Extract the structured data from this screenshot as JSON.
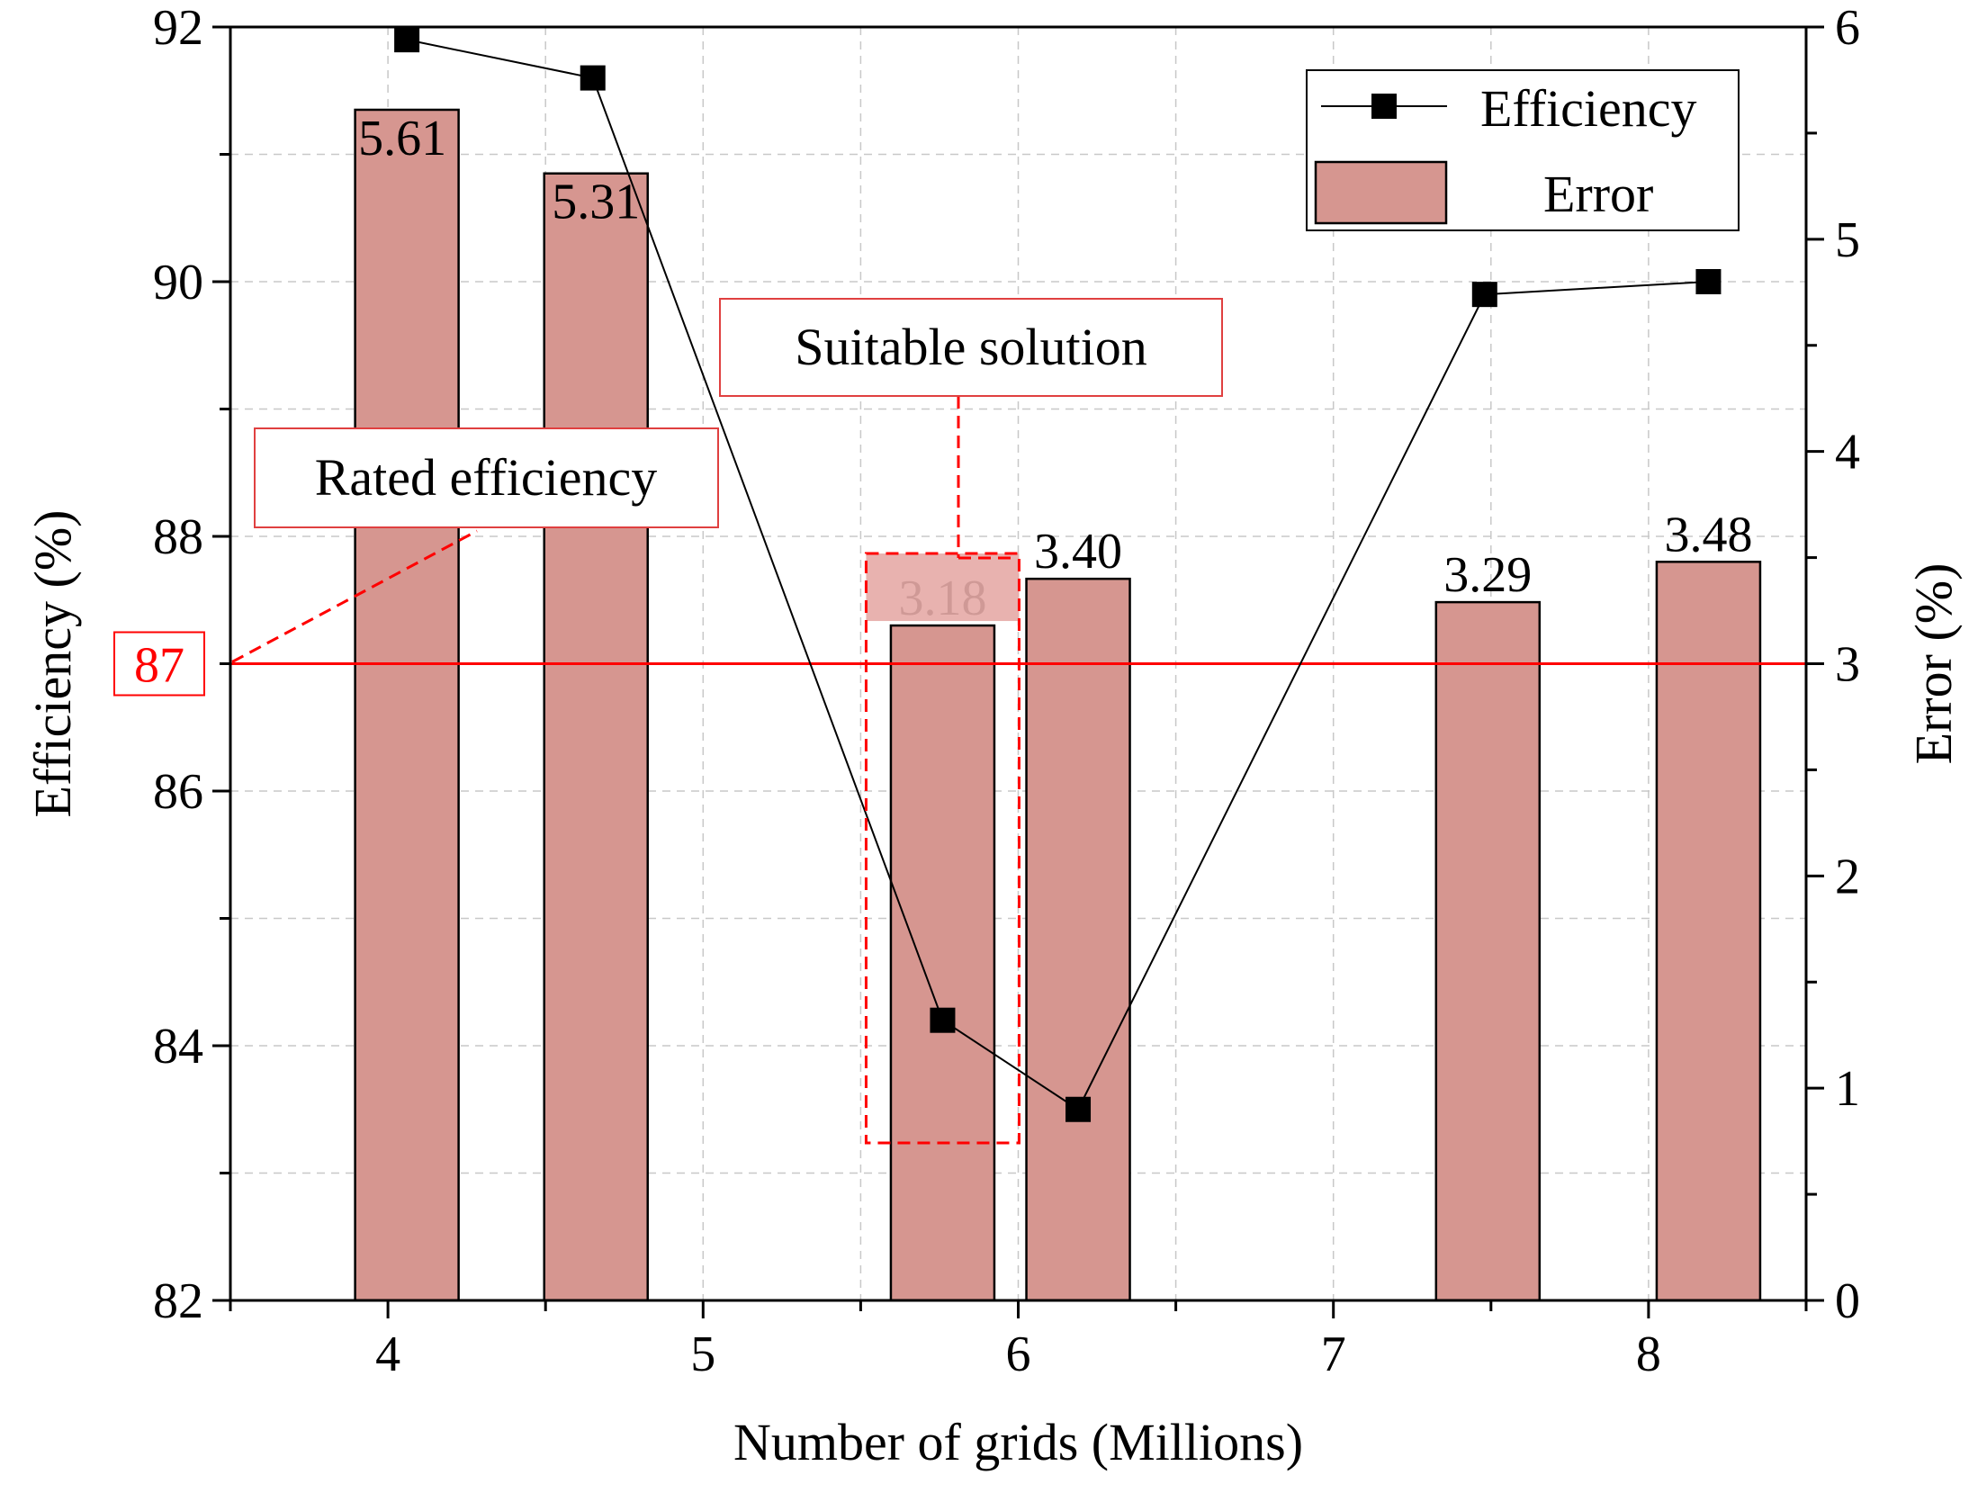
{
  "chart_data": {
    "type": "bar+line",
    "x_label": "Number of grids (Millions)",
    "y_left_label": "Efficiency (%)",
    "y_right_label": "Error (%)",
    "x_range": [
      3.5,
      8.5
    ],
    "x_ticks": [
      4,
      5,
      6,
      7,
      8
    ],
    "y_left_range": [
      82,
      92
    ],
    "y_left_ticks": [
      82,
      84,
      86,
      88,
      90,
      92
    ],
    "y_right_range": [
      0,
      6
    ],
    "y_right_ticks": [
      0,
      1,
      2,
      3,
      4,
      5,
      6
    ],
    "grid": true,
    "legend_position": "top-right",
    "series": [
      {
        "name": "Efficiency",
        "kind": "line",
        "axis": "left",
        "x": [
          4.06,
          4.65,
          5.76,
          6.19,
          7.48,
          8.19
        ],
        "values": [
          91.9,
          91.6,
          84.2,
          83.5,
          89.9,
          90.0
        ]
      },
      {
        "name": "Error",
        "kind": "bar",
        "axis": "right",
        "color": "#d69690",
        "x": [
          4.06,
          4.66,
          5.76,
          6.19,
          7.49,
          8.19
        ],
        "values": [
          5.61,
          5.31,
          3.18,
          3.4,
          3.29,
          3.48
        ],
        "labels": [
          "5.61",
          "5.31",
          "3.18",
          "3.40",
          "3.29",
          "3.48"
        ]
      }
    ],
    "reference_line": {
      "axis": "left",
      "value": 87,
      "label": "87",
      "color": "#ff0000"
    },
    "annotations": [
      {
        "text": "Rated efficiency"
      },
      {
        "text": "Suitable solution"
      }
    ]
  }
}
